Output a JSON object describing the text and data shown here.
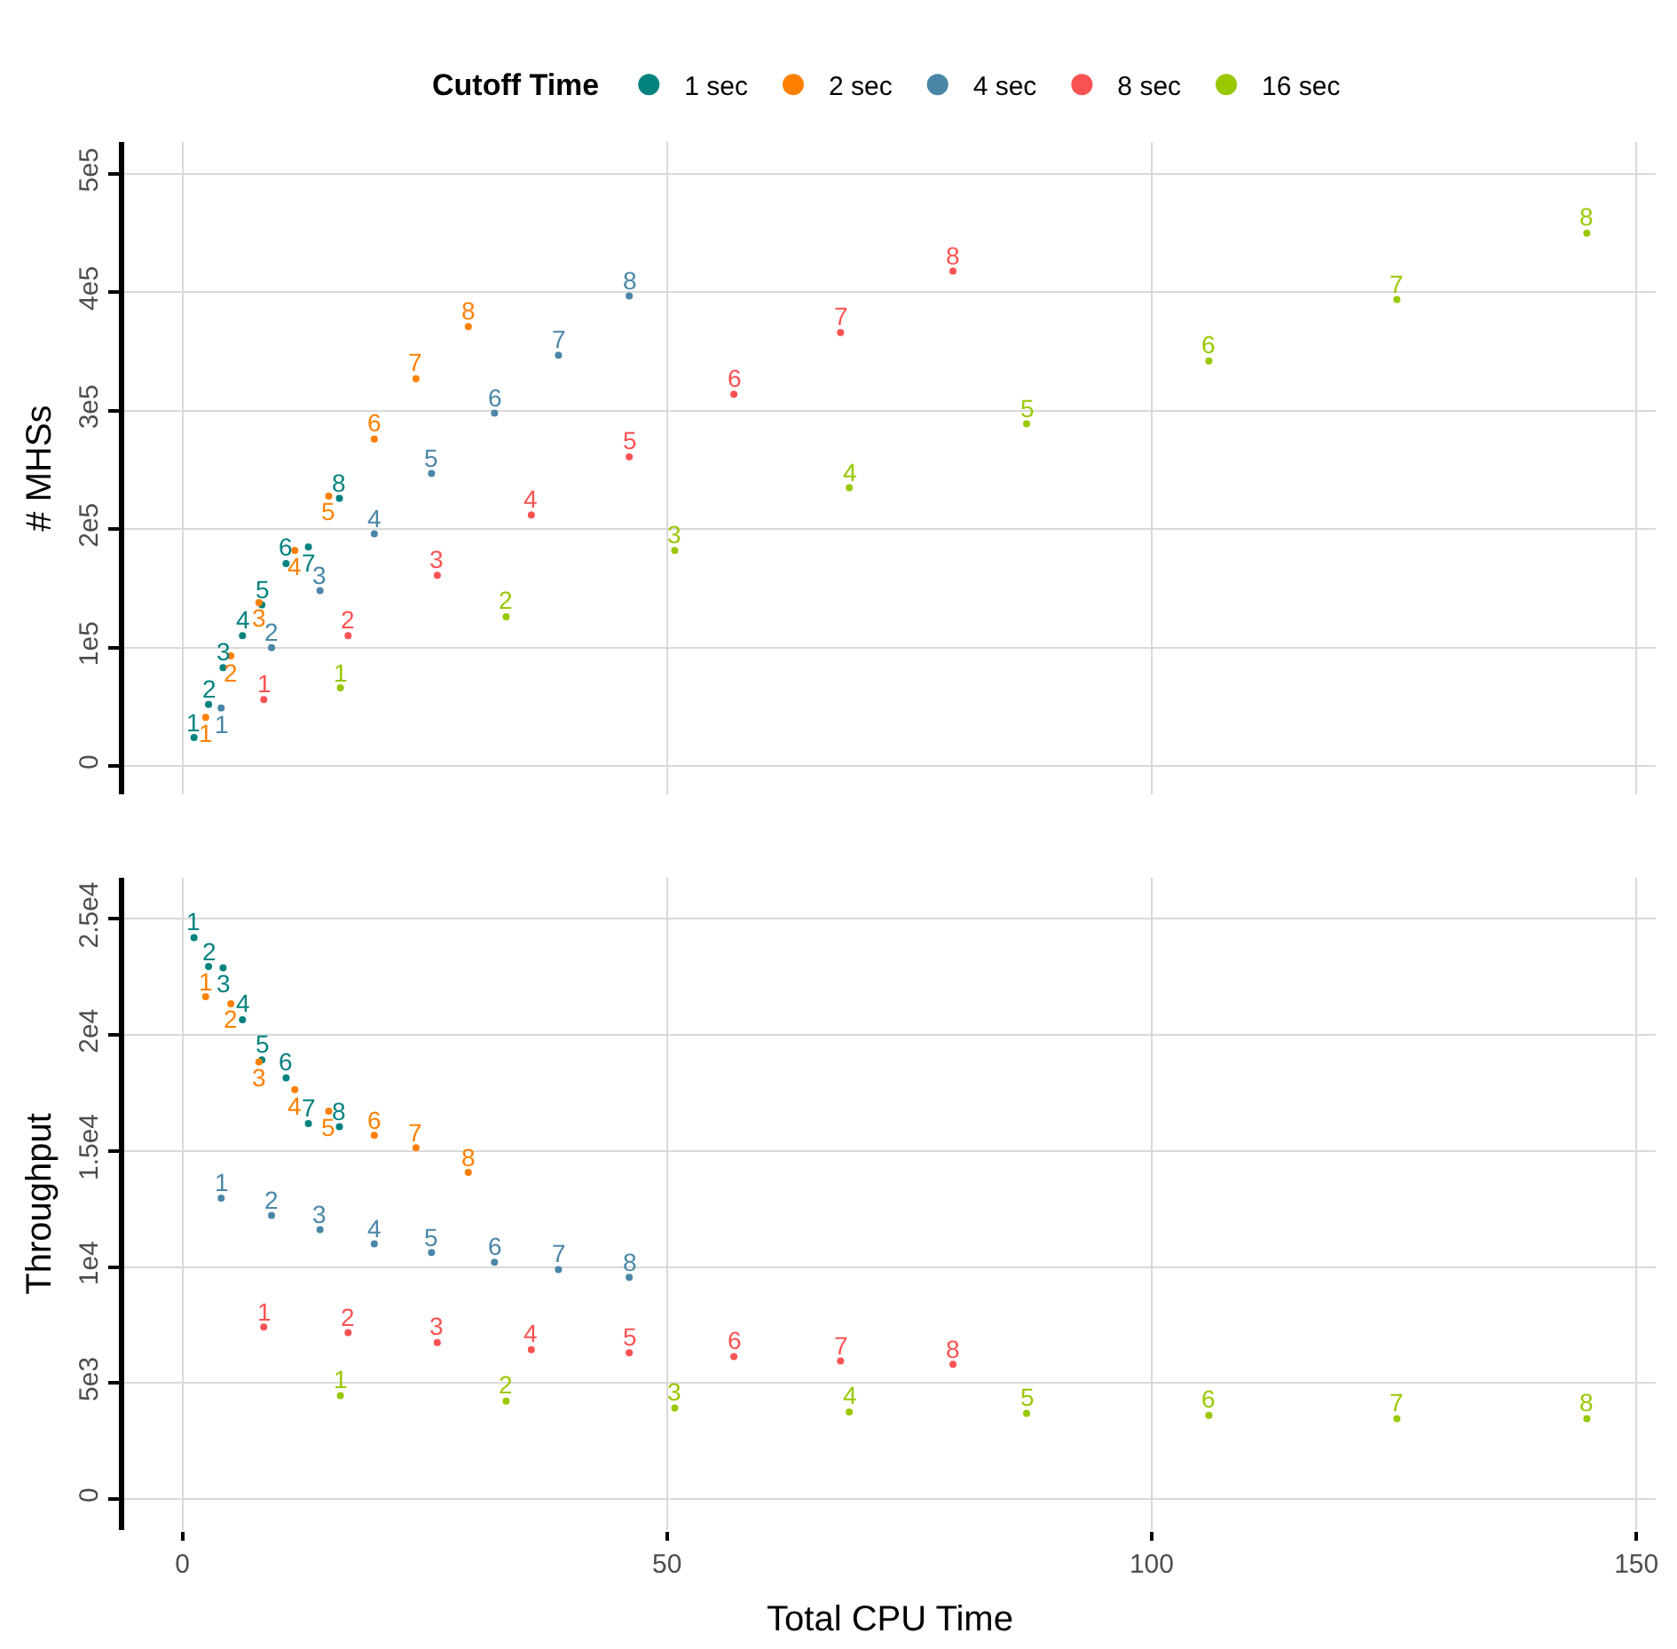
{
  "chart_data": [
    {
      "type": "scatter",
      "ylabel": "# MHSs",
      "legend_title": "Cutoff Time",
      "legend": "top",
      "grid": true,
      "tick_labels": "y",
      "marker": "circle",
      "xlim": [
        -6,
        152
      ],
      "xticks": [
        0,
        50,
        100,
        150
      ],
      "ylim": [
        -24000,
        527000
      ],
      "yticks": [
        {
          "value": 0,
          "label": "0"
        },
        {
          "value": 100000,
          "label": "1e5"
        },
        {
          "value": 200000,
          "label": "2e5"
        },
        {
          "value": 300000,
          "label": "3e5"
        },
        {
          "value": 400000,
          "label": "4e5"
        },
        {
          "value": 500000,
          "label": "5e5"
        }
      ],
      "series": [
        {
          "name": "1 sec",
          "color": "#00827f",
          "x": [
            1.2,
            2.7,
            4.2,
            6.2,
            8.2,
            10.7,
            13.0,
            16.2
          ],
          "values": [
            24000,
            52000,
            83000,
            110000,
            136000,
            171000,
            185000,
            226000
          ]
        },
        {
          "name": "2 sec",
          "color": "#ff8000",
          "x": [
            2.4,
            5.0,
            7.9,
            11.6,
            15.1,
            19.8,
            24.1,
            29.5
          ],
          "values": [
            41000,
            93000,
            138000,
            182000,
            228000,
            276000,
            327000,
            371000
          ]
        },
        {
          "name": "4 sec",
          "color": "#4a86a8",
          "x": [
            4.0,
            9.2,
            14.2,
            19.8,
            25.7,
            32.2,
            38.8,
            46.1
          ],
          "values": [
            49000,
            100000,
            148000,
            196000,
            247000,
            298000,
            347000,
            397000
          ]
        },
        {
          "name": "8 sec",
          "color": "#fa5252",
          "x": [
            8.4,
            17.1,
            26.3,
            36.0,
            46.1,
            56.9,
            67.9,
            79.5
          ],
          "values": [
            56000,
            110000,
            161000,
            212000,
            261000,
            314000,
            366000,
            418000
          ]
        },
        {
          "name": "16 sec",
          "color": "#99c800",
          "x": [
            16.3,
            33.4,
            50.8,
            68.8,
            87.1,
            105.9,
            125.3,
            144.9
          ],
          "values": [
            66000,
            126000,
            182000,
            235000,
            289000,
            342000,
            394000,
            450000
          ]
        }
      ],
      "annotations": [
        {
          "text": "1",
          "x": 1.2,
          "y": 24000
        },
        {
          "text": "2",
          "x": 2.7,
          "y": 52000
        },
        {
          "text": "3",
          "x": 4.2,
          "y": 83000
        },
        {
          "text": "4",
          "x": 6.2,
          "y": 110000
        },
        {
          "text": "5",
          "x": 8.2,
          "y": 136000
        },
        {
          "text": "6",
          "x": 10.7,
          "y": 171000
        },
        {
          "text": "7",
          "x": 13.0,
          "y": 185000
        },
        {
          "text": "8",
          "x": 16.2,
          "y": 226000
        },
        {
          "text": "1",
          "x": 2.4,
          "y": 41000
        },
        {
          "text": "2",
          "x": 5.0,
          "y": 93000
        },
        {
          "text": "3",
          "x": 7.9,
          "y": 138000
        },
        {
          "text": "4",
          "x": 11.6,
          "y": 182000
        },
        {
          "text": "5",
          "x": 15.1,
          "y": 228000
        },
        {
          "text": "6",
          "x": 19.8,
          "y": 276000
        },
        {
          "text": "7",
          "x": 24.1,
          "y": 327000
        },
        {
          "text": "8",
          "x": 29.5,
          "y": 371000
        },
        {
          "text": "1",
          "x": 4.0,
          "y": 49000
        },
        {
          "text": "2",
          "x": 9.2,
          "y": 100000
        },
        {
          "text": "3",
          "x": 14.2,
          "y": 148000
        },
        {
          "text": "4",
          "x": 19.8,
          "y": 196000
        },
        {
          "text": "5",
          "x": 25.7,
          "y": 247000
        },
        {
          "text": "6",
          "x": 32.2,
          "y": 298000
        },
        {
          "text": "7",
          "x": 38.8,
          "y": 347000
        },
        {
          "text": "8",
          "x": 46.1,
          "y": 397000
        },
        {
          "text": "1",
          "x": 8.4,
          "y": 56000
        },
        {
          "text": "2",
          "x": 17.1,
          "y": 110000
        },
        {
          "text": "3",
          "x": 26.3,
          "y": 161000
        },
        {
          "text": "4",
          "x": 36.0,
          "y": 212000
        },
        {
          "text": "5",
          "x": 46.1,
          "y": 261000
        },
        {
          "text": "6",
          "x": 56.9,
          "y": 314000
        },
        {
          "text": "7",
          "x": 67.9,
          "y": 366000
        },
        {
          "text": "8",
          "x": 79.5,
          "y": 418000
        },
        {
          "text": "1",
          "x": 16.3,
          "y": 66000
        },
        {
          "text": "2",
          "x": 33.4,
          "y": 126000
        },
        {
          "text": "3",
          "x": 50.8,
          "y": 182000
        },
        {
          "text": "4",
          "x": 68.8,
          "y": 235000
        },
        {
          "text": "5",
          "x": 87.1,
          "y": 289000
        },
        {
          "text": "6",
          "x": 105.9,
          "y": 342000
        },
        {
          "text": "7",
          "x": 125.3,
          "y": 394000
        },
        {
          "text": "8",
          "x": 144.9,
          "y": 450000
        }
      ]
    },
    {
      "type": "scatter",
      "xlabel": "Total CPU Time",
      "ylabel": "Throughput",
      "grid": true,
      "marker": "circle",
      "xlim": [
        -6,
        152
      ],
      "xticks": [
        0,
        50,
        100,
        150
      ],
      "ylim": [
        -1330,
        26780
      ],
      "yticks": [
        {
          "value": 0,
          "label": "0"
        },
        {
          "value": 5000,
          "label": "5e3"
        },
        {
          "value": 10000,
          "label": "1e4"
        },
        {
          "value": 15000,
          "label": "1.5e4"
        },
        {
          "value": 20000,
          "label": "2e4"
        },
        {
          "value": 25000,
          "label": "2.5e4"
        }
      ],
      "series": [
        {
          "color": "#00827f",
          "x": [
            1.2,
            2.7,
            4.2,
            6.2,
            8.2,
            10.7,
            13.0,
            16.2
          ],
          "values": [
            24200,
            22950,
            22900,
            20660,
            18930,
            18150,
            16180,
            16050
          ]
        },
        {
          "color": "#ff8000",
          "x": [
            2.4,
            5.0,
            7.9,
            11.6,
            15.1,
            19.8,
            24.1,
            29.5
          ],
          "values": [
            21650,
            21350,
            18840,
            17650,
            16720,
            15680,
            15140,
            14080
          ]
        },
        {
          "color": "#4a86a8",
          "x": [
            4.0,
            9.2,
            14.2,
            19.8,
            25.7,
            32.2,
            38.8,
            46.1
          ],
          "values": [
            12970,
            12230,
            11610,
            11000,
            10630,
            10210,
            9890,
            9560
          ]
        },
        {
          "color": "#fa5252",
          "x": [
            8.4,
            17.1,
            26.3,
            36.0,
            46.1,
            56.9,
            67.9,
            79.5
          ],
          "values": [
            7420,
            7180,
            6750,
            6440,
            6310,
            6150,
            5950,
            5810
          ]
        },
        {
          "color": "#99c800",
          "x": [
            16.3,
            33.4,
            50.8,
            68.8,
            87.1,
            105.9,
            125.3,
            144.9
          ],
          "values": [
            4460,
            4220,
            3930,
            3760,
            3700,
            3610,
            3470,
            3470
          ]
        }
      ],
      "annotations": [
        {
          "text": "1",
          "x": 1.2,
          "y": 24200
        },
        {
          "text": "2",
          "x": 2.7,
          "y": 22950
        },
        {
          "text": "3",
          "x": 4.2,
          "y": 22900
        },
        {
          "text": "4",
          "x": 6.2,
          "y": 20660
        },
        {
          "text": "5",
          "x": 8.2,
          "y": 18930
        },
        {
          "text": "6",
          "x": 10.7,
          "y": 18150
        },
        {
          "text": "7",
          "x": 13.0,
          "y": 16180
        },
        {
          "text": "8",
          "x": 16.2,
          "y": 16050
        },
        {
          "text": "1",
          "x": 2.4,
          "y": 21650
        },
        {
          "text": "2",
          "x": 5.0,
          "y": 21350
        },
        {
          "text": "3",
          "x": 7.9,
          "y": 18840
        },
        {
          "text": "4",
          "x": 11.6,
          "y": 17650
        },
        {
          "text": "5",
          "x": 15.1,
          "y": 16720
        },
        {
          "text": "6",
          "x": 19.8,
          "y": 15680
        },
        {
          "text": "7",
          "x": 24.1,
          "y": 15140
        },
        {
          "text": "8",
          "x": 29.5,
          "y": 14080
        },
        {
          "text": "1",
          "x": 4.0,
          "y": 12970
        },
        {
          "text": "2",
          "x": 9.2,
          "y": 12230
        },
        {
          "text": "3",
          "x": 14.2,
          "y": 11610
        },
        {
          "text": "4",
          "x": 19.8,
          "y": 11000
        },
        {
          "text": "5",
          "x": 25.7,
          "y": 10630
        },
        {
          "text": "6",
          "x": 32.2,
          "y": 10210
        },
        {
          "text": "7",
          "x": 38.8,
          "y": 9890
        },
        {
          "text": "8",
          "x": 46.1,
          "y": 9560
        },
        {
          "text": "1",
          "x": 8.4,
          "y": 7420
        },
        {
          "text": "2",
          "x": 17.1,
          "y": 7180
        },
        {
          "text": "3",
          "x": 26.3,
          "y": 6750
        },
        {
          "text": "4",
          "x": 36.0,
          "y": 6440
        },
        {
          "text": "5",
          "x": 46.1,
          "y": 6310
        },
        {
          "text": "6",
          "x": 56.9,
          "y": 6150
        },
        {
          "text": "7",
          "x": 67.9,
          "y": 5950
        },
        {
          "text": "8",
          "x": 79.5,
          "y": 5810
        },
        {
          "text": "1",
          "x": 16.3,
          "y": 4460
        },
        {
          "text": "2",
          "x": 33.4,
          "y": 4220
        },
        {
          "text": "3",
          "x": 50.8,
          "y": 3930
        },
        {
          "text": "4",
          "x": 68.8,
          "y": 3760
        },
        {
          "text": "5",
          "x": 87.1,
          "y": 3700
        },
        {
          "text": "6",
          "x": 105.9,
          "y": 3610
        },
        {
          "text": "7",
          "x": 125.3,
          "y": 3470
        },
        {
          "text": "8",
          "x": 144.9,
          "y": 3470
        }
      ]
    }
  ]
}
